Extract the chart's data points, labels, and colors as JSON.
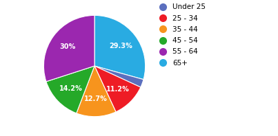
{
  "labels": [
    "Under 25",
    "25 - 34",
    "35 - 44",
    "45 - 54",
    "55 - 64",
    "65+"
  ],
  "values": [
    2.6,
    11.2,
    12.7,
    14.2,
    30.0,
    29.3
  ],
  "colors": [
    "#5B6FBE",
    "#EE1C25",
    "#F7941D",
    "#25A929",
    "#9B27AF",
    "#29ABE2"
  ],
  "pie_order": [
    5,
    0,
    1,
    2,
    3,
    4
  ],
  "pct_labels": [
    "",
    "11.2%",
    "12.7%",
    "14.2%",
    "30%",
    "29.3%"
  ],
  "startangle": 90,
  "figsize": [
    4.03,
    1.98
  ],
  "dpi": 100
}
